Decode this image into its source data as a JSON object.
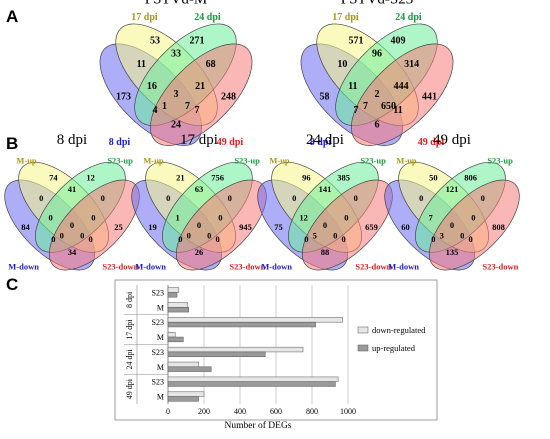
{
  "panels": {
    "a": "A",
    "b": "B",
    "c": "C"
  },
  "colors": {
    "blue": "#6b6bf2",
    "yellow": "#f5f58a",
    "green": "#6cee9a",
    "red": "#f77a7a",
    "label_blue": "#1a1ad8",
    "label_yellow": "#a89a10",
    "label_green": "#139e3a",
    "label_red": "#e01a1a",
    "bar_down": "#e6e6e6",
    "bar_up": "#9a9a9a"
  },
  "venn_a": [
    {
      "title": "PSTVd-M",
      "labels": {
        "blue": "8 dpi",
        "yellow": "17 dpi",
        "green": "24 dpi",
        "red": "49 dpi"
      },
      "values": {
        "b": "173",
        "y": "53",
        "g": "271",
        "r": "248",
        "by": "11",
        "yg": "33",
        "gr": "68",
        "br": "24",
        "bg": "4",
        "yr": "7",
        "byg": "16",
        "ygr": "21",
        "bgr": "1",
        "byr": "7",
        "all": "3"
      }
    },
    {
      "title": "PSTVd-S23",
      "labels": {
        "blue": "8 dpi",
        "yellow": "17 dpi",
        "green": "24 dpi",
        "red": "49 dpi"
      },
      "values": {
        "b": "58",
        "y": "571",
        "g": "409",
        "r": "441",
        "by": "10",
        "yg": "96",
        "gr": "314",
        "br": "6",
        "bg": "7",
        "yr": "11",
        "byg": "11",
        "ygr": "444",
        "bgr": "7",
        "byr": "650",
        "all": "2"
      }
    }
  ],
  "venn_b": [
    {
      "title": "8 dpi",
      "labels": {
        "blue": "M-down",
        "yellow": "M-up",
        "green": "S23-up",
        "red": "S23-down"
      },
      "values": {
        "b": "84",
        "y": "74",
        "g": "12",
        "r": "25",
        "by": "0",
        "yg": "41",
        "gr": "0",
        "br": "34",
        "bg": "0",
        "yr": "0",
        "byg": "0",
        "ygr": "0",
        "bgr": "0",
        "byr": "0",
        "all": "0"
      }
    },
    {
      "title": "17 dpi",
      "labels": {
        "blue": "M-down",
        "yellow": "M-up",
        "green": "S23-up",
        "red": "S23-down"
      },
      "values": {
        "b": "19",
        "y": "21",
        "g": "756",
        "r": "945",
        "by": "0",
        "yg": "63",
        "gr": "0",
        "br": "26",
        "bg": "0",
        "yr": "0",
        "byg": "1",
        "ygr": "0",
        "bgr": "0",
        "byr": "0",
        "all": "0"
      }
    },
    {
      "title": "24 dpi",
      "labels": {
        "blue": "M-down",
        "yellow": "M-up",
        "green": "S23-up",
        "red": "S23-down"
      },
      "values": {
        "b": "75",
        "y": "96",
        "g": "385",
        "r": "659",
        "by": "0",
        "yg": "141",
        "gr": "0",
        "br": "88",
        "bg": "0",
        "yr": "0",
        "byg": "12",
        "ygr": "0",
        "bgr": "5",
        "byr": "0",
        "all": "0"
      }
    },
    {
      "title": "49 dpi",
      "labels": {
        "blue": "M-down",
        "yellow": "M-up",
        "green": "S23-up",
        "red": "S23-down"
      },
      "values": {
        "b": "60",
        "y": "50",
        "g": "806",
        "r": "808",
        "by": "0",
        "yg": "121",
        "gr": "0",
        "br": "135",
        "bg": "0",
        "yr": "0",
        "byg": "7",
        "ygr": "0",
        "bgr": "3",
        "byr": "0",
        "all": "0"
      }
    }
  ],
  "chart_data": {
    "type": "bar",
    "orientation": "horizontal",
    "groups": [
      "8 dpi",
      "17 dpi",
      "24 dpi",
      "49 dpi"
    ],
    "rows": [
      "S23",
      "M",
      "S23",
      "M",
      "S23",
      "M",
      "S23",
      "M"
    ],
    "row_groups": [
      "8 dpi",
      "8 dpi",
      "17 dpi",
      "17 dpi",
      "24 dpi",
      "24 dpi",
      "49 dpi",
      "49 dpi"
    ],
    "series": [
      {
        "name": "down-regulated",
        "values": [
          60,
          110,
          970,
          40,
          750,
          170,
          945,
          200
        ]
      },
      {
        "name": "up-regulated",
        "values": [
          50,
          115,
          820,
          85,
          540,
          240,
          930,
          170
        ]
      }
    ],
    "xlabel": "Number of DEGs",
    "xlim": [
      0,
      1000
    ],
    "xticks": [
      "0",
      "200",
      "400",
      "600",
      "800",
      "1000"
    ],
    "grid": true,
    "legend": "right"
  }
}
